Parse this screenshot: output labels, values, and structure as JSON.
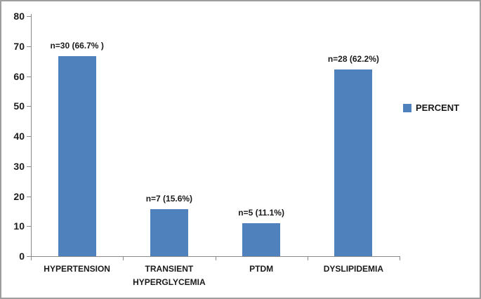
{
  "chart_data": {
    "type": "bar",
    "title": "",
    "xlabel": "",
    "ylabel": "",
    "categories": [
      "HYPERTENSION",
      "TRANSIENT HYPERGLYCEMIA",
      "PTDM",
      "DYSLIPIDEMIA"
    ],
    "series": [
      {
        "name": "PERCENT",
        "values": [
          66.7,
          15.6,
          11.1,
          62.2
        ]
      }
    ],
    "counts": [
      30,
      7,
      5,
      28
    ],
    "bar_labels": [
      "n=30 (66.7% )",
      "n=7 (15.6%)",
      "n=5 (11.1%)",
      "n=28 (62.2%)"
    ],
    "ylim": [
      0,
      80
    ],
    "ytick_step": 10,
    "yticks": [
      0,
      10,
      20,
      30,
      40,
      50,
      60,
      70,
      80
    ],
    "grid": false,
    "legend": {
      "position": "right",
      "entries": [
        "PERCENT"
      ]
    },
    "colors": {
      "bar": "#4F81BD",
      "axis": "#8a8a8a",
      "text": "#1a1a1a",
      "frame_border": "#9e9e9e"
    }
  }
}
